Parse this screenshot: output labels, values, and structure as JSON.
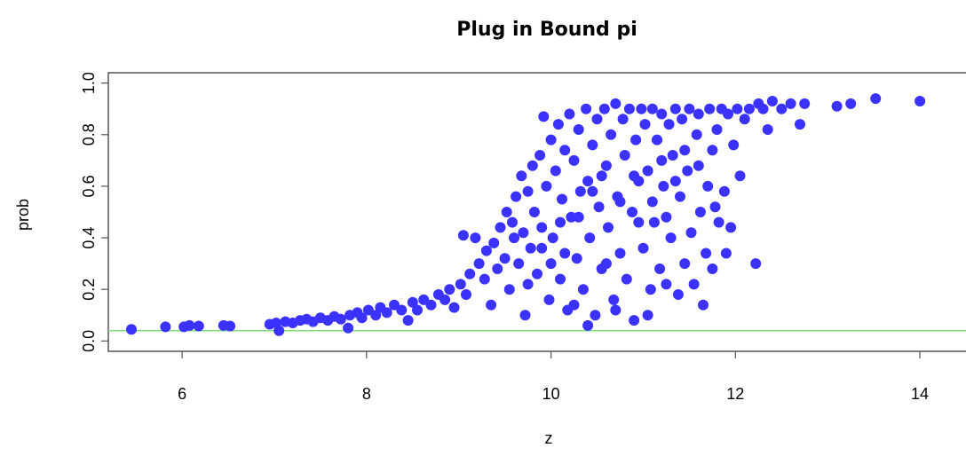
{
  "chart_data": {
    "type": "scatter",
    "title": "Plug in Bound pi",
    "xlabel": "z",
    "ylabel": "prob",
    "xlim": [
      5.2,
      14.5
    ],
    "ylim": [
      -0.04,
      1.04
    ],
    "x_ticks": [
      "6",
      "8",
      "10",
      "12",
      "14"
    ],
    "y_ticks": [
      "0.0",
      "0.2",
      "0.4",
      "0.6",
      "0.8",
      "1.0"
    ],
    "point_color": "#3b32ff",
    "reference_line": {
      "y": 0.04,
      "color": "#7fdc7f"
    },
    "series": [
      {
        "points": [
          [
            5.45,
            0.045
          ],
          [
            5.82,
            0.055
          ],
          [
            6.02,
            0.055
          ],
          [
            6.08,
            0.06
          ],
          [
            6.18,
            0.058
          ],
          [
            6.45,
            0.06
          ],
          [
            6.52,
            0.058
          ],
          [
            6.95,
            0.065
          ],
          [
            7.02,
            0.07
          ],
          [
            7.05,
            0.04
          ],
          [
            7.12,
            0.075
          ],
          [
            7.2,
            0.07
          ],
          [
            7.28,
            0.08
          ],
          [
            7.35,
            0.085
          ],
          [
            7.42,
            0.075
          ],
          [
            7.5,
            0.09
          ],
          [
            7.58,
            0.08
          ],
          [
            7.65,
            0.095
          ],
          [
            7.72,
            0.085
          ],
          [
            7.8,
            0.05
          ],
          [
            7.82,
            0.1
          ],
          [
            7.9,
            0.11
          ],
          [
            7.95,
            0.09
          ],
          [
            8.02,
            0.12
          ],
          [
            8.1,
            0.1
          ],
          [
            8.15,
            0.13
          ],
          [
            8.22,
            0.11
          ],
          [
            8.3,
            0.14
          ],
          [
            8.38,
            0.12
          ],
          [
            8.45,
            0.08
          ],
          [
            8.5,
            0.15
          ],
          [
            8.55,
            0.12
          ],
          [
            8.62,
            0.16
          ],
          [
            8.7,
            0.14
          ],
          [
            8.78,
            0.18
          ],
          [
            8.85,
            0.16
          ],
          [
            8.9,
            0.2
          ],
          [
            8.95,
            0.13
          ],
          [
            9.02,
            0.22
          ],
          [
            9.05,
            0.41
          ],
          [
            9.08,
            0.18
          ],
          [
            9.12,
            0.26
          ],
          [
            9.18,
            0.4
          ],
          [
            9.22,
            0.3
          ],
          [
            9.28,
            0.24
          ],
          [
            9.3,
            0.35
          ],
          [
            9.35,
            0.14
          ],
          [
            9.38,
            0.38
          ],
          [
            9.42,
            0.28
          ],
          [
            9.45,
            0.44
          ],
          [
            9.5,
            0.32
          ],
          [
            9.52,
            0.5
          ],
          [
            9.55,
            0.2
          ],
          [
            9.58,
            0.46
          ],
          [
            9.62,
            0.56
          ],
          [
            9.65,
            0.3
          ],
          [
            9.68,
            0.64
          ],
          [
            9.7,
            0.42
          ],
          [
            9.72,
            0.1
          ],
          [
            9.75,
            0.58
          ],
          [
            9.78,
            0.36
          ],
          [
            9.8,
            0.68
          ],
          [
            9.82,
            0.5
          ],
          [
            9.85,
            0.26
          ],
          [
            9.88,
            0.72
          ],
          [
            9.9,
            0.44
          ],
          [
            9.92,
            0.87
          ],
          [
            9.95,
            0.6
          ],
          [
            9.98,
            0.16
          ],
          [
            10.0,
            0.78
          ],
          [
            10.02,
            0.4
          ],
          [
            10.05,
            0.66
          ],
          [
            10.08,
            0.84
          ],
          [
            10.1,
            0.24
          ],
          [
            10.12,
            0.55
          ],
          [
            10.15,
            0.74
          ],
          [
            10.18,
            0.12
          ],
          [
            10.2,
            0.88
          ],
          [
            10.22,
            0.48
          ],
          [
            10.25,
            0.7
          ],
          [
            10.28,
            0.32
          ],
          [
            10.3,
            0.82
          ],
          [
            10.32,
            0.58
          ],
          [
            10.35,
            0.2
          ],
          [
            10.38,
            0.9
          ],
          [
            10.4,
            0.62
          ],
          [
            10.42,
            0.4
          ],
          [
            10.45,
            0.76
          ],
          [
            10.48,
            0.1
          ],
          [
            10.5,
            0.86
          ],
          [
            10.52,
            0.52
          ],
          [
            10.55,
            0.28
          ],
          [
            10.58,
            0.9
          ],
          [
            10.6,
            0.68
          ],
          [
            10.62,
            0.44
          ],
          [
            10.65,
            0.8
          ],
          [
            10.68,
            0.16
          ],
          [
            10.7,
            0.92
          ],
          [
            10.72,
            0.56
          ],
          [
            10.75,
            0.34
          ],
          [
            10.78,
            0.86
          ],
          [
            10.8,
            0.72
          ],
          [
            10.82,
            0.24
          ],
          [
            10.85,
            0.9
          ],
          [
            10.88,
            0.5
          ],
          [
            10.9,
            0.08
          ],
          [
            10.92,
            0.78
          ],
          [
            10.95,
            0.62
          ],
          [
            10.98,
            0.9
          ],
          [
            11.0,
            0.36
          ],
          [
            11.02,
            0.84
          ],
          [
            11.05,
            0.66
          ],
          [
            11.08,
            0.2
          ],
          [
            11.1,
            0.9
          ],
          [
            11.12,
            0.46
          ],
          [
            11.15,
            0.78
          ],
          [
            11.18,
            0.28
          ],
          [
            11.2,
            0.88
          ],
          [
            11.22,
            0.6
          ],
          [
            11.25,
            0.22
          ],
          [
            11.28,
            0.84
          ],
          [
            11.3,
            0.4
          ],
          [
            11.32,
            0.72
          ],
          [
            11.35,
            0.9
          ],
          [
            11.38,
            0.18
          ],
          [
            11.4,
            0.56
          ],
          [
            11.42,
            0.86
          ],
          [
            11.45,
            0.3
          ],
          [
            11.48,
            0.66
          ],
          [
            11.5,
            0.9
          ],
          [
            11.52,
            0.42
          ],
          [
            11.55,
            0.22
          ],
          [
            11.58,
            0.8
          ],
          [
            11.6,
            0.88
          ],
          [
            11.62,
            0.5
          ],
          [
            11.65,
            0.14
          ],
          [
            11.68,
            0.34
          ],
          [
            11.7,
            0.6
          ],
          [
            11.72,
            0.9
          ],
          [
            11.75,
            0.28
          ],
          [
            11.78,
            0.52
          ],
          [
            11.8,
            0.82
          ],
          [
            11.82,
            0.46
          ],
          [
            11.85,
            0.9
          ],
          [
            11.88,
            0.58
          ],
          [
            11.9,
            0.34
          ],
          [
            11.92,
            0.88
          ],
          [
            11.95,
            0.44
          ],
          [
            11.98,
            0.76
          ],
          [
            12.02,
            0.9
          ],
          [
            12.05,
            0.64
          ],
          [
            12.1,
            0.86
          ],
          [
            12.15,
            0.9
          ],
          [
            12.22,
            0.3
          ],
          [
            12.25,
            0.92
          ],
          [
            12.3,
            0.9
          ],
          [
            12.35,
            0.82
          ],
          [
            12.4,
            0.93
          ],
          [
            12.5,
            0.9
          ],
          [
            12.6,
            0.92
          ],
          [
            12.7,
            0.84
          ],
          [
            12.75,
            0.92
          ],
          [
            13.1,
            0.91
          ],
          [
            13.25,
            0.92
          ],
          [
            13.52,
            0.94
          ],
          [
            14.0,
            0.93
          ],
          [
            10.0,
            0.3
          ],
          [
            10.1,
            0.46
          ],
          [
            10.25,
            0.14
          ],
          [
            10.4,
            0.06
          ],
          [
            10.55,
            0.64
          ],
          [
            10.7,
            0.12
          ],
          [
            10.9,
            0.64
          ],
          [
            11.05,
            0.1
          ],
          [
            11.2,
            0.7
          ],
          [
            11.35,
            0.62
          ],
          [
            9.6,
            0.4
          ],
          [
            9.75,
            0.22
          ],
          [
            9.9,
            0.36
          ],
          [
            10.15,
            0.34
          ],
          [
            10.3,
            0.48
          ],
          [
            10.45,
            0.58
          ],
          [
            10.6,
            0.3
          ],
          [
            10.75,
            0.54
          ],
          [
            10.95,
            0.46
          ],
          [
            11.1,
            0.54
          ],
          [
            11.25,
            0.48
          ],
          [
            11.45,
            0.74
          ],
          [
            11.6,
            0.68
          ],
          [
            11.75,
            0.74
          ]
        ]
      }
    ]
  }
}
